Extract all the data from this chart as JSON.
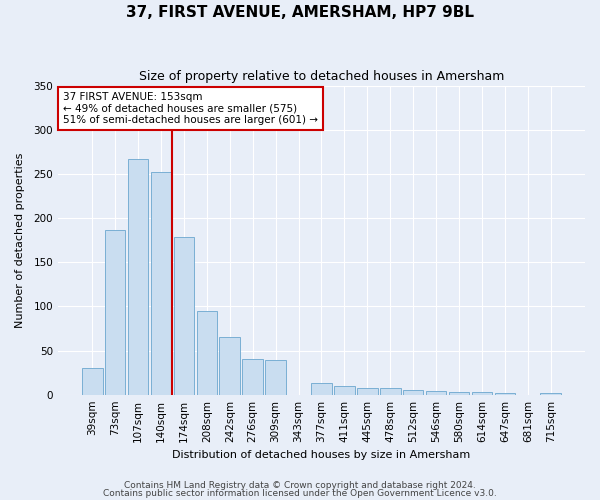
{
  "title": "37, FIRST AVENUE, AMERSHAM, HP7 9BL",
  "subtitle": "Size of property relative to detached houses in Amersham",
  "xlabel": "Distribution of detached houses by size in Amersham",
  "ylabel": "Number of detached properties",
  "bar_labels": [
    "39sqm",
    "73sqm",
    "107sqm",
    "140sqm",
    "174sqm",
    "208sqm",
    "242sqm",
    "276sqm",
    "309sqm",
    "343sqm",
    "377sqm",
    "411sqm",
    "445sqm",
    "478sqm",
    "512sqm",
    "546sqm",
    "580sqm",
    "614sqm",
    "647sqm",
    "681sqm",
    "715sqm"
  ],
  "bar_values": [
    30,
    186,
    267,
    252,
    178,
    95,
    65,
    40,
    39,
    0,
    13,
    10,
    7,
    7,
    5,
    4,
    3,
    3,
    2,
    0,
    2
  ],
  "bar_color": "#c9ddf0",
  "bar_edge_color": "#7aafd4",
  "vline_x": 3.5,
  "vline_color": "#cc0000",
  "annotation_text": "37 FIRST AVENUE: 153sqm\n← 49% of detached houses are smaller (575)\n51% of semi-detached houses are larger (601) →",
  "annotation_box_color": "#ffffff",
  "annotation_box_edge": "#cc0000",
  "ylim": [
    0,
    350
  ],
  "yticks": [
    0,
    50,
    100,
    150,
    200,
    250,
    300,
    350
  ],
  "footer1": "Contains HM Land Registry data © Crown copyright and database right 2024.",
  "footer2": "Contains public sector information licensed under the Open Government Licence v3.0.",
  "bg_color": "#e8eef8",
  "plot_bg_color": "#e8eef8",
  "grid_color": "#ffffff",
  "title_fontsize": 11,
  "subtitle_fontsize": 9,
  "axis_label_fontsize": 8,
  "tick_fontsize": 7.5,
  "annotation_fontsize": 7.5,
  "footer_fontsize": 6.5
}
